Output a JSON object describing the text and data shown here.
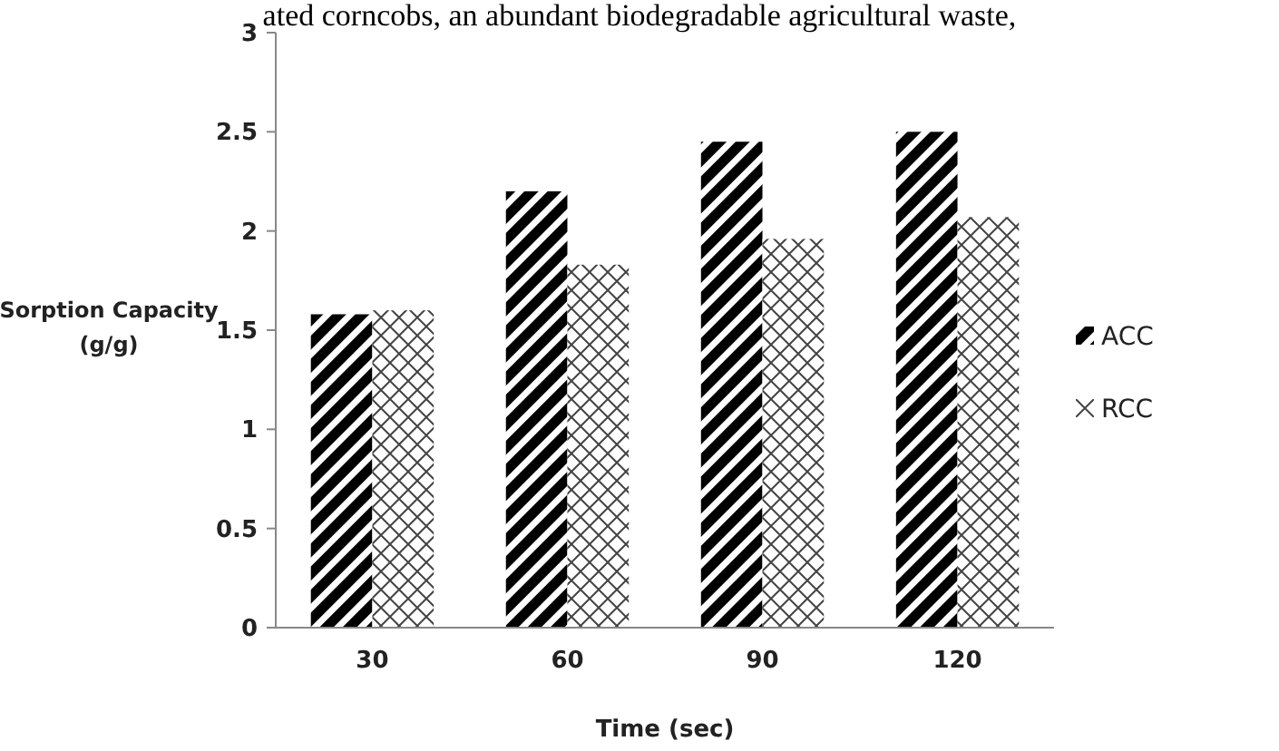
{
  "chart_data": {
    "type": "bar",
    "xlabel": "Time (sec)",
    "ylabel": "Sorption Capacity (g/g)",
    "annotations": [
      "ated corncobs, an abundant biodegradable agricultural waste,"
    ],
    "categories": [
      "30",
      "60",
      "90",
      "120"
    ],
    "series": [
      {
        "name": "ACC",
        "color": "#000000",
        "values": [
          1.58,
          2.2,
          2.45,
          2.5
        ]
      },
      {
        "name": "RCC",
        "color": "#444444",
        "values": [
          1.6,
          1.83,
          1.96,
          2.07
        ]
      }
    ],
    "ylim": [
      0,
      3
    ],
    "yticks": [
      0,
      {
        "value": 0.5,
        "label": "0.5"
      },
      1,
      {
        "value": 1.5,
        "label": "1.5"
      },
      2,
      {
        "value": 2.5,
        "label": "2.5"
      },
      3
    ],
    "grid": false,
    "legend": "right"
  }
}
